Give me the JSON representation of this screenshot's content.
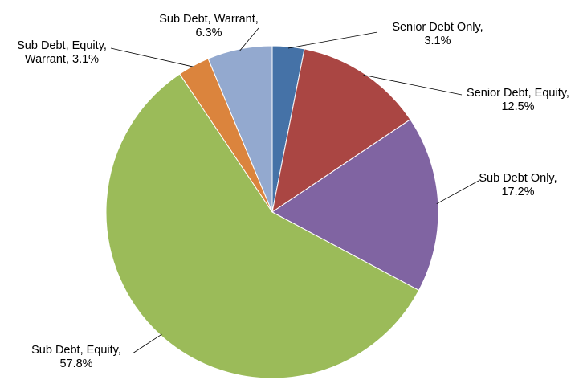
{
  "chart_data": {
    "type": "pie",
    "categories": [
      "Senior Debt Only,",
      "Senior Debt, Equity,",
      "Sub Debt Only,",
      "Sub Debt, Equity,",
      "Sub Debt, Equity, Warrant,",
      "Sub Debt, Warrant,"
    ],
    "values": [
      3.1,
      12.5,
      17.2,
      57.8,
      3.1,
      6.3
    ],
    "value_labels": [
      "3.1%",
      "12.5%",
      "17.2%",
      "57.8%",
      "3.1%",
      "6.3%"
    ],
    "colors": [
      "#4572a7",
      "#aa4643",
      "#8064a2",
      "#9bbb59",
      "#db843d",
      "#93a9cf"
    ]
  }
}
